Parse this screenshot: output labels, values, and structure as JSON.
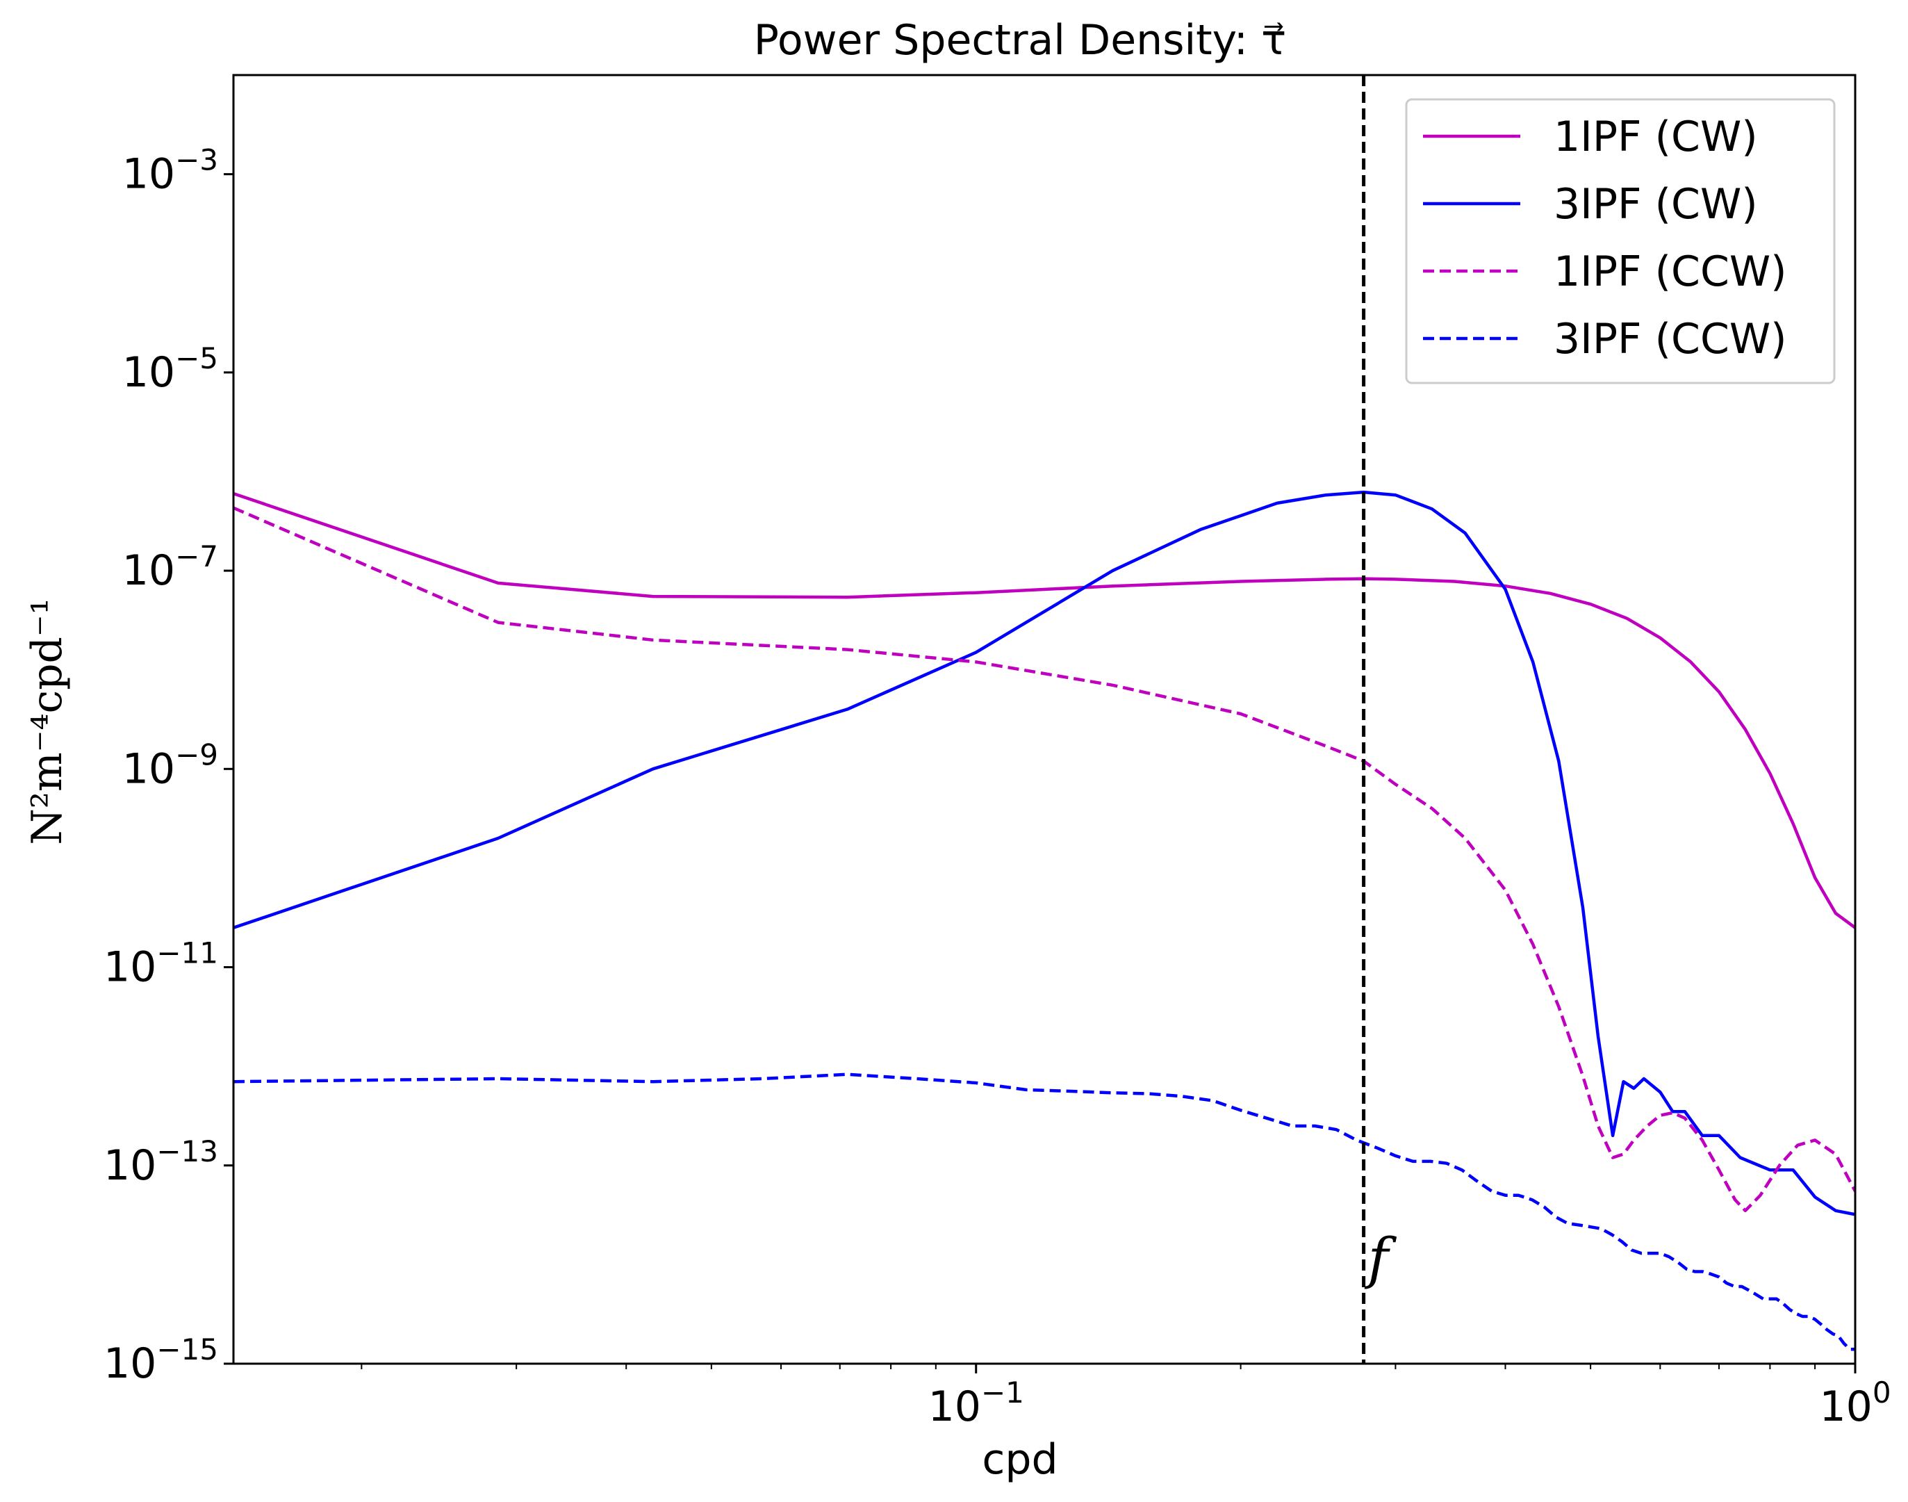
{
  "chart_data": {
    "type": "line",
    "title": "Power Spectral Density: τ⃗",
    "xlabel": "cpd",
    "ylabel": "N²m⁻⁴cpd⁻¹",
    "x_scale": "log",
    "y_scale": "log",
    "xlim": [
      0.0143,
      1.0
    ],
    "ylim": [
      1e-15,
      0.01
    ],
    "x_ticks": [
      {
        "value": 0.1,
        "base": "10",
        "exp": "−1"
      },
      {
        "value": 1.0,
        "base": "10",
        "exp": "0"
      }
    ],
    "y_ticks": [
      {
        "value": 0.001,
        "base": "10",
        "exp": "−3"
      },
      {
        "value": 1e-05,
        "base": "10",
        "exp": "−5"
      },
      {
        "value": 1e-07,
        "base": "10",
        "exp": "−7"
      },
      {
        "value": 1e-09,
        "base": "10",
        "exp": "−9"
      },
      {
        "value": 1e-11,
        "base": "10",
        "exp": "−11"
      },
      {
        "value": 1e-13,
        "base": "10",
        "exp": "−13"
      },
      {
        "value": 1e-15,
        "base": "10",
        "exp": "−15"
      }
    ],
    "grid": false,
    "legend_position": "top-right",
    "vline": {
      "x": 0.276,
      "label": "f",
      "color": "#000000"
    },
    "series": [
      {
        "name": "1IPF (CW)",
        "color": "#bf00bf",
        "style": "solid",
        "x": [
          0.0143,
          0.0286,
          0.0429,
          0.0714,
          0.1,
          0.143,
          0.2,
          0.25,
          0.276,
          0.3,
          0.35,
          0.4,
          0.45,
          0.5,
          0.55,
          0.6,
          0.65,
          0.7,
          0.75,
          0.8,
          0.85,
          0.9,
          0.95,
          1.0
        ],
        "y": [
          6e-07,
          7.5e-08,
          5.5e-08,
          5.4e-08,
          6e-08,
          7e-08,
          7.8e-08,
          8.2e-08,
          8.3e-08,
          8.2e-08,
          7.8e-08,
          7e-08,
          5.9e-08,
          4.6e-08,
          3.3e-08,
          2.1e-08,
          1.2e-08,
          6e-09,
          2.5e-09,
          9e-10,
          2.8e-10,
          8e-11,
          3.5e-11,
          2.5e-11
        ]
      },
      {
        "name": "3IPF (CW)",
        "color": "#0000ff",
        "style": "solid",
        "x": [
          0.0143,
          0.0286,
          0.0429,
          0.0714,
          0.1,
          0.143,
          0.18,
          0.22,
          0.25,
          0.276,
          0.3,
          0.33,
          0.36,
          0.4,
          0.43,
          0.46,
          0.49,
          0.51,
          0.53,
          0.545,
          0.56,
          0.575,
          0.6,
          0.62,
          0.64,
          0.67,
          0.7,
          0.74,
          0.8,
          0.85,
          0.9,
          0.95,
          1.0
        ],
        "y": [
          2.5e-11,
          2e-10,
          1e-09,
          4e-09,
          1.5e-08,
          1e-07,
          2.6e-07,
          4.8e-07,
          5.8e-07,
          6.2e-07,
          5.8e-07,
          4.2e-07,
          2.4e-07,
          6.5e-08,
          1.2e-08,
          1.2e-09,
          4e-11,
          2e-12,
          2e-13,
          7e-13,
          6e-13,
          7.5e-13,
          5.5e-13,
          3.5e-13,
          3.5e-13,
          2e-13,
          2e-13,
          1.2e-13,
          9e-14,
          9e-14,
          4.8e-14,
          3.5e-14,
          3.2e-14
        ]
      },
      {
        "name": "1IPF (CCW)",
        "color": "#bf00bf",
        "style": "dashed",
        "x": [
          0.0143,
          0.0286,
          0.0429,
          0.0714,
          0.1,
          0.143,
          0.2,
          0.25,
          0.276,
          0.3,
          0.33,
          0.36,
          0.4,
          0.43,
          0.46,
          0.49,
          0.51,
          0.53,
          0.545,
          0.56,
          0.58,
          0.6,
          0.62,
          0.64,
          0.67,
          0.7,
          0.73,
          0.75,
          0.78,
          0.82,
          0.86,
          0.9,
          0.95,
          1.0
        ],
        "y": [
          4.3e-07,
          3e-08,
          2e-08,
          1.6e-08,
          1.2e-08,
          7e-09,
          3.6e-09,
          1.7e-09,
          1.2e-09,
          7e-10,
          4e-10,
          2e-10,
          6e-11,
          1.7e-11,
          4e-12,
          8e-13,
          2.5e-13,
          1.2e-13,
          1.3e-13,
          1.8e-13,
          2.5e-13,
          3.2e-13,
          3.4e-13,
          3e-13,
          1.8e-13,
          9e-14,
          4.5e-14,
          3.5e-14,
          5e-14,
          1e-13,
          1.6e-13,
          1.8e-13,
          1.3e-13,
          5.5e-14
        ]
      },
      {
        "name": "3IPF (CCW)",
        "color": "#0000ff",
        "style": "dashed",
        "x": [
          0.0143,
          0.0286,
          0.0429,
          0.0571,
          0.0714,
          0.0857,
          0.1,
          0.114,
          0.129,
          0.143,
          0.157,
          0.171,
          0.186,
          0.2,
          0.214,
          0.229,
          0.243,
          0.257,
          0.271,
          0.286,
          0.3,
          0.314,
          0.329,
          0.343,
          0.357,
          0.371,
          0.386,
          0.4,
          0.414,
          0.429,
          0.443,
          0.457,
          0.471,
          0.486,
          0.5,
          0.514,
          0.529,
          0.543,
          0.557,
          0.571,
          0.586,
          0.6,
          0.614,
          0.629,
          0.643,
          0.657,
          0.671,
          0.686,
          0.7,
          0.714,
          0.729,
          0.743,
          0.757,
          0.771,
          0.786,
          0.8,
          0.814,
          0.829,
          0.843,
          0.857,
          0.871,
          0.886,
          0.9,
          0.914,
          0.929,
          0.943,
          0.957,
          0.971,
          0.986,
          1.0
        ],
        "y": [
          7e-13,
          7.5e-13,
          7e-13,
          7.5e-13,
          8.3e-13,
          7.5e-13,
          6.8e-13,
          5.8e-13,
          5.6e-13,
          5.4e-13,
          5.3e-13,
          5e-13,
          4.5e-13,
          3.6e-13,
          3e-13,
          2.5e-13,
          2.5e-13,
          2.3e-13,
          1.8e-13,
          1.5e-13,
          1.25e-13,
          1.1e-13,
          1.1e-13,
          1.05e-13,
          9e-14,
          7e-14,
          5.5e-14,
          5e-14,
          5e-14,
          4.5e-14,
          3.8e-14,
          3e-14,
          2.6e-14,
          2.5e-14,
          2.4e-14,
          2.3e-14,
          2e-14,
          1.7e-14,
          1.4e-14,
          1.3e-14,
          1.3e-14,
          1.3e-14,
          1.2e-14,
          1.05e-14,
          9e-15,
          8.5e-15,
          8.5e-15,
          8e-15,
          7.5e-15,
          6.5e-15,
          6e-15,
          6e-15,
          5.5e-15,
          5e-15,
          4.5e-15,
          4.5e-15,
          4.5e-15,
          4e-15,
          3.5e-15,
          3.2e-15,
          3e-15,
          3e-15,
          2.8e-15,
          2.5e-15,
          2.2e-15,
          2e-15,
          1.9e-15,
          1.6e-15,
          1.4e-15,
          1.4e-15
        ]
      }
    ]
  }
}
